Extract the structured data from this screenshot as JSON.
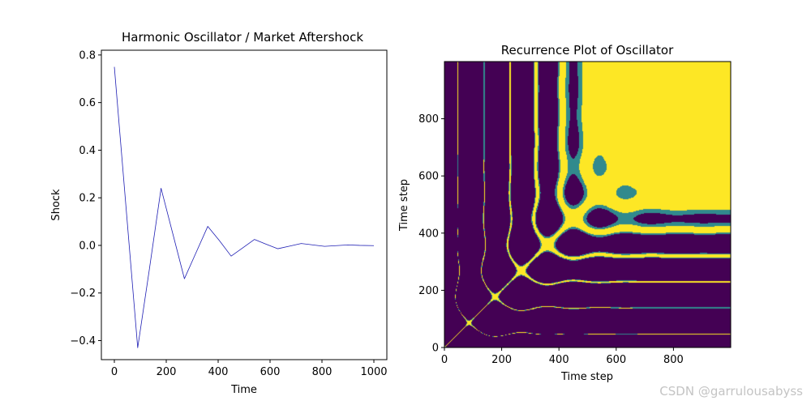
{
  "chart_data": [
    {
      "type": "line",
      "title": "Harmonic Oscillator / Market Aftershock",
      "xlabel": "Time",
      "ylabel": "Shock",
      "xlim": [
        -50,
        1050
      ],
      "ylim": [
        -0.48,
        0.82
      ],
      "xticks": [
        0,
        200,
        400,
        600,
        800,
        1000
      ],
      "yticks": [
        -0.4,
        -0.2,
        0.0,
        0.2,
        0.4,
        0.6,
        0.8
      ],
      "ytick_labels": [
        "−0.4",
        "−0.2",
        "0.0",
        "0.2",
        "0.4",
        "0.6",
        "0.8"
      ],
      "grid": false,
      "line_color": "#1f1fb4",
      "series": [
        {
          "x": [
            0,
            45,
            90,
            135,
            180,
            225,
            270,
            315,
            360,
            405,
            450,
            495,
            540,
            585,
            630,
            675,
            720,
            765,
            810,
            855,
            900,
            945,
            1000
          ],
          "y": [
            0.75,
            0.16,
            -0.43,
            -0.1,
            0.24,
            0.05,
            -0.14,
            -0.03,
            0.08,
            0.02,
            -0.045,
            -0.01,
            0.025,
            0.005,
            -0.014,
            -0.003,
            0.008,
            0.002,
            -0.004,
            -0.001,
            0.002,
            0.0,
            -0.001
          ]
        }
      ]
    },
    {
      "type": "heatmap",
      "title": "Recurrence Plot of Oscillator",
      "xlabel": "Time step",
      "ylabel": "Time step",
      "xlim": [
        0,
        1000
      ],
      "ylim": [
        0,
        1000
      ],
      "xticks": [
        0,
        200,
        400,
        600,
        800
      ],
      "yticks": [
        0,
        200,
        400,
        600,
        800
      ],
      "grid": false,
      "colormap": [
        "#440154",
        "#31688e",
        "#35b779",
        "#fde725"
      ],
      "signal": {
        "amplitude": 0.75,
        "decay_per_step": 0.0082,
        "period_steps": 182,
        "threshold": 0.01
      }
    }
  ],
  "watermark": "CSDN @garrulousabyss"
}
